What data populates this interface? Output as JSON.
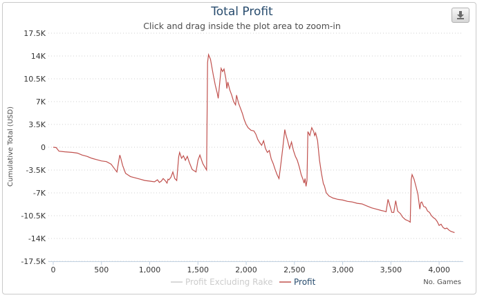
{
  "chart_data": {
    "type": "line",
    "title": "Total Profit",
    "subtitle": "Click and drag inside the plot area to zoom-in",
    "xlabel": "No. Games",
    "ylabel": "Cumulative Total (USD)",
    "xlim": [
      -50,
      4250
    ],
    "ylim": [
      -17500,
      17500
    ],
    "x_ticks": [
      0,
      500,
      1000,
      1500,
      2000,
      2500,
      3000,
      3500,
      4000
    ],
    "x_tick_labels": [
      "0",
      "500",
      "1,000",
      "1,500",
      "2,000",
      "2,500",
      "3,000",
      "3,500",
      "4,000"
    ],
    "y_ticks": [
      17500,
      14000,
      10500,
      7000,
      3500,
      0,
      -3500,
      -7000,
      -10500,
      -14000,
      -17500
    ],
    "y_tick_labels": [
      "17.5K",
      "14K",
      "10.5K",
      "7K",
      "3.5K",
      "0",
      "-3.5K",
      "-7K",
      "-10.5K",
      "-14K",
      "-17.5K"
    ],
    "grid": "y-dotted",
    "legend_position": "bottom",
    "series": [
      {
        "name": "Profit Excluding Rake",
        "color": "#cccccc",
        "visible": false,
        "points": []
      },
      {
        "name": "Profit",
        "color": "#c0504d",
        "visible": true,
        "points": [
          [
            0,
            0
          ],
          [
            30,
            -50
          ],
          [
            60,
            -600
          ],
          [
            120,
            -700
          ],
          [
            200,
            -800
          ],
          [
            250,
            -900
          ],
          [
            300,
            -1200
          ],
          [
            350,
            -1400
          ],
          [
            400,
            -1700
          ],
          [
            450,
            -1900
          ],
          [
            500,
            -2100
          ],
          [
            550,
            -2200
          ],
          [
            600,
            -2600
          ],
          [
            630,
            -3200
          ],
          [
            660,
            -3800
          ],
          [
            680,
            -2000
          ],
          [
            690,
            -1200
          ],
          [
            700,
            -1700
          ],
          [
            720,
            -2800
          ],
          [
            750,
            -4000
          ],
          [
            800,
            -4500
          ],
          [
            850,
            -4700
          ],
          [
            900,
            -4900
          ],
          [
            950,
            -5100
          ],
          [
            1000,
            -5200
          ],
          [
            1050,
            -5300
          ],
          [
            1080,
            -5000
          ],
          [
            1100,
            -5400
          ],
          [
            1120,
            -5200
          ],
          [
            1140,
            -4800
          ],
          [
            1160,
            -5100
          ],
          [
            1180,
            -5500
          ],
          [
            1190,
            -4900
          ],
          [
            1200,
            -5000
          ],
          [
            1220,
            -4600
          ],
          [
            1240,
            -3800
          ],
          [
            1260,
            -4800
          ],
          [
            1280,
            -5100
          ],
          [
            1300,
            -1500
          ],
          [
            1310,
            -800
          ],
          [
            1330,
            -1700
          ],
          [
            1350,
            -1300
          ],
          [
            1370,
            -2000
          ],
          [
            1390,
            -1400
          ],
          [
            1410,
            -2300
          ],
          [
            1440,
            -3400
          ],
          [
            1480,
            -3800
          ],
          [
            1500,
            -2000
          ],
          [
            1520,
            -1200
          ],
          [
            1550,
            -2500
          ],
          [
            1590,
            -3500
          ],
          [
            1600,
            13000
          ],
          [
            1610,
            14200
          ],
          [
            1630,
            13500
          ],
          [
            1660,
            11000
          ],
          [
            1680,
            9500
          ],
          [
            1700,
            8300
          ],
          [
            1710,
            7500
          ],
          [
            1720,
            9000
          ],
          [
            1740,
            12100
          ],
          [
            1755,
            11600
          ],
          [
            1770,
            12000
          ],
          [
            1790,
            10500
          ],
          [
            1800,
            9000
          ],
          [
            1810,
            10000
          ],
          [
            1830,
            8800
          ],
          [
            1850,
            8000
          ],
          [
            1870,
            7000
          ],
          [
            1890,
            6500
          ],
          [
            1900,
            8000
          ],
          [
            1920,
            6800
          ],
          [
            1940,
            6000
          ],
          [
            1960,
            5200
          ],
          [
            1980,
            4200
          ],
          [
            2000,
            3500
          ],
          [
            2020,
            3000
          ],
          [
            2050,
            2600
          ],
          [
            2080,
            2500
          ],
          [
            2100,
            2000
          ],
          [
            2120,
            1200
          ],
          [
            2140,
            700
          ],
          [
            2160,
            300
          ],
          [
            2180,
            1000
          ],
          [
            2200,
            -200
          ],
          [
            2220,
            -800
          ],
          [
            2240,
            -500
          ],
          [
            2260,
            -1800
          ],
          [
            2280,
            -2500
          ],
          [
            2300,
            -3400
          ],
          [
            2320,
            -4200
          ],
          [
            2340,
            -4800
          ],
          [
            2360,
            -2500
          ],
          [
            2380,
            0
          ],
          [
            2400,
            2700
          ],
          [
            2410,
            2000
          ],
          [
            2430,
            1000
          ],
          [
            2450,
            -200
          ],
          [
            2470,
            800
          ],
          [
            2490,
            -500
          ],
          [
            2510,
            -1400
          ],
          [
            2530,
            -2000
          ],
          [
            2550,
            -3000
          ],
          [
            2570,
            -4200
          ],
          [
            2590,
            -5000
          ],
          [
            2600,
            -5500
          ],
          [
            2610,
            -4800
          ],
          [
            2620,
            -6000
          ],
          [
            2630,
            -5100
          ],
          [
            2640,
            2400
          ],
          [
            2660,
            1800
          ],
          [
            2680,
            3000
          ],
          [
            2700,
            2400
          ],
          [
            2710,
            1800
          ],
          [
            2720,
            2200
          ],
          [
            2740,
            1000
          ],
          [
            2760,
            -2000
          ],
          [
            2780,
            -4000
          ],
          [
            2800,
            -5600
          ],
          [
            2810,
            -5900
          ],
          [
            2830,
            -7000
          ],
          [
            2860,
            -7500
          ],
          [
            2900,
            -7800
          ],
          [
            2950,
            -8000
          ],
          [
            3000,
            -8100
          ],
          [
            3050,
            -8300
          ],
          [
            3100,
            -8400
          ],
          [
            3150,
            -8600
          ],
          [
            3200,
            -8700
          ],
          [
            3250,
            -9000
          ],
          [
            3300,
            -9300
          ],
          [
            3350,
            -9500
          ],
          [
            3400,
            -9700
          ],
          [
            3430,
            -9800
          ],
          [
            3450,
            -9900
          ],
          [
            3470,
            -8000
          ],
          [
            3490,
            -9000
          ],
          [
            3510,
            -10000
          ],
          [
            3530,
            -10000
          ],
          [
            3550,
            -8200
          ],
          [
            3570,
            -9800
          ],
          [
            3600,
            -10200
          ],
          [
            3620,
            -10700
          ],
          [
            3650,
            -11100
          ],
          [
            3680,
            -11300
          ],
          [
            3700,
            -11500
          ],
          [
            3710,
            -5000
          ],
          [
            3720,
            -4200
          ],
          [
            3740,
            -4900
          ],
          [
            3760,
            -6000
          ],
          [
            3780,
            -7200
          ],
          [
            3800,
            -9500
          ],
          [
            3810,
            -8500
          ],
          [
            3820,
            -8400
          ],
          [
            3840,
            -9100
          ],
          [
            3860,
            -9200
          ],
          [
            3880,
            -9800
          ],
          [
            3900,
            -10000
          ],
          [
            3920,
            -10500
          ],
          [
            3940,
            -10800
          ],
          [
            3960,
            -11000
          ],
          [
            3980,
            -11400
          ],
          [
            4000,
            -12000
          ],
          [
            4020,
            -11800
          ],
          [
            4040,
            -12300
          ],
          [
            4060,
            -12500
          ],
          [
            4080,
            -12400
          ],
          [
            4100,
            -12700
          ],
          [
            4120,
            -12900
          ],
          [
            4140,
            -13000
          ],
          [
            4160,
            -13100
          ]
        ]
      }
    ]
  }
}
